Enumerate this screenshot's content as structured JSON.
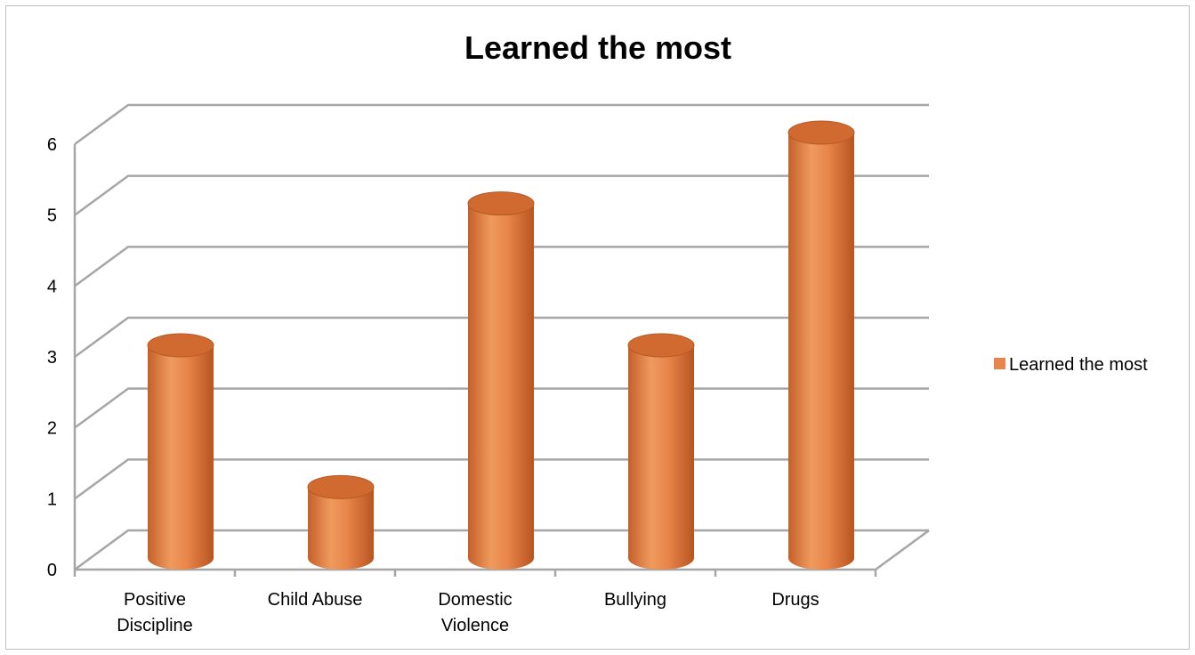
{
  "chart_data": {
    "type": "bar",
    "title": "Learned the most",
    "categories": [
      [
        "Positive",
        "Discipline"
      ],
      [
        "Child Abuse"
      ],
      [
        "Domestic",
        "Violence"
      ],
      [
        "Bullying"
      ],
      [
        "Drugs"
      ]
    ],
    "series": [
      {
        "name": "Learned the most",
        "values": [
          3,
          1,
          5,
          3,
          6
        ],
        "color": "#e8854a"
      }
    ],
    "yticks": [
      "0",
      "1",
      "2",
      "3",
      "4",
      "5",
      "6"
    ],
    "ylim": [
      0,
      6
    ],
    "grid": true,
    "legend_position": "right",
    "style": "3d-cylinder"
  }
}
